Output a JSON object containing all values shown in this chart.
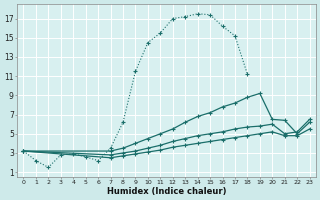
{
  "bg_color": "#ceeaea",
  "plot_bg": "#d8f0f0",
  "line_color": "#1a6e6a",
  "grid_color": "#b8d8d8",
  "xlabel": "Humidex (Indice chaleur)",
  "xlim": [
    -0.5,
    23.5
  ],
  "ylim": [
    0.5,
    18.5
  ],
  "yticks": [
    1,
    3,
    5,
    7,
    9,
    11,
    13,
    15,
    17
  ],
  "xticks": [
    0,
    1,
    2,
    3,
    4,
    5,
    6,
    7,
    8,
    9,
    10,
    11,
    12,
    13,
    14,
    15,
    16,
    17,
    18,
    19,
    20,
    21,
    22,
    23
  ],
  "curve1_x": [
    0,
    1,
    2,
    3,
    4,
    5,
    6,
    7,
    8,
    9,
    10,
    11,
    12,
    13,
    14,
    15,
    16,
    17,
    18
  ],
  "curve1_y": [
    3.2,
    2.2,
    1.5,
    2.8,
    2.9,
    2.6,
    2.2,
    3.5,
    6.2,
    11.5,
    14.5,
    15.5,
    17.0,
    17.2,
    17.5,
    17.4,
    16.2,
    15.2,
    11.2
  ],
  "curve2_x": [
    0,
    7,
    8,
    9,
    10,
    11,
    12,
    13,
    14,
    15,
    16,
    17,
    18,
    19,
    20,
    21,
    22,
    23
  ],
  "curve2_y": [
    3.2,
    3.2,
    3.5,
    4.0,
    4.5,
    5.0,
    5.5,
    6.2,
    6.8,
    7.2,
    7.8,
    8.2,
    8.8,
    9.2,
    6.5,
    6.4,
    5.0,
    6.2
  ],
  "curve3_x": [
    0,
    7,
    8,
    9,
    10,
    11,
    12,
    13,
    14,
    15,
    16,
    17,
    18,
    19,
    20,
    21,
    22,
    23
  ],
  "curve3_y": [
    3.2,
    2.8,
    3.0,
    3.2,
    3.5,
    3.8,
    4.2,
    4.5,
    4.8,
    5.0,
    5.2,
    5.5,
    5.7,
    5.8,
    6.0,
    5.0,
    5.2,
    6.5
  ],
  "curve4_x": [
    0,
    7,
    8,
    9,
    10,
    11,
    12,
    13,
    14,
    15,
    16,
    17,
    18,
    19,
    20,
    21,
    22,
    23
  ],
  "curve4_y": [
    3.2,
    2.5,
    2.7,
    2.9,
    3.1,
    3.3,
    3.6,
    3.8,
    4.0,
    4.2,
    4.4,
    4.6,
    4.8,
    5.0,
    5.2,
    4.8,
    4.8,
    5.5
  ]
}
